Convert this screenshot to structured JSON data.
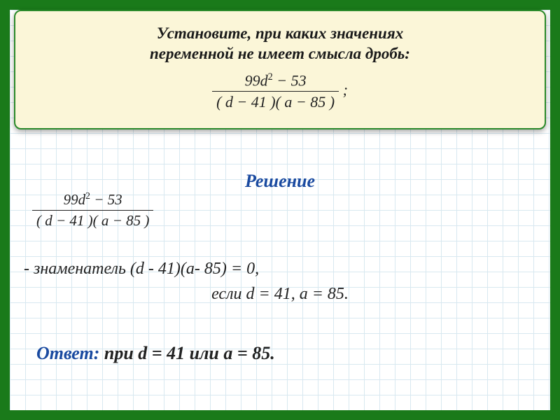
{
  "colors": {
    "outer_border": "#1a7a1a",
    "card_bg": "#fbf6d8",
    "card_border": "#2a8a2a",
    "grid": "#d8e8f0",
    "accent_blue": "#1a4aa0",
    "text": "#222222"
  },
  "typography": {
    "title_fontsize": 23,
    "body_fontsize": 24,
    "answer_fontsize": 26,
    "family": "Georgia / Times New Roman",
    "style": "italic"
  },
  "header": {
    "title_line1": "Установите, при каких  значениях",
    "title_line2": "переменной не имеет смысла дробь:",
    "fraction_numerator": "99d² − 53",
    "fraction_denominator": "( d − 41 )( a − 85 )",
    "trailing": ";"
  },
  "solution": {
    "label": "Решение",
    "fraction_numerator": "99d² − 53",
    "fraction_denominator": "( d − 41 )( a − 85 )",
    "explanation_prefix": "-  знаменатель ",
    "explanation_expr": "(d - 41)(a- 85) = 0,",
    "explanation_line2": "если  d = 41, a = 85."
  },
  "answer": {
    "label": "Ответ:",
    "text": " при d = 41 или а = 85."
  }
}
